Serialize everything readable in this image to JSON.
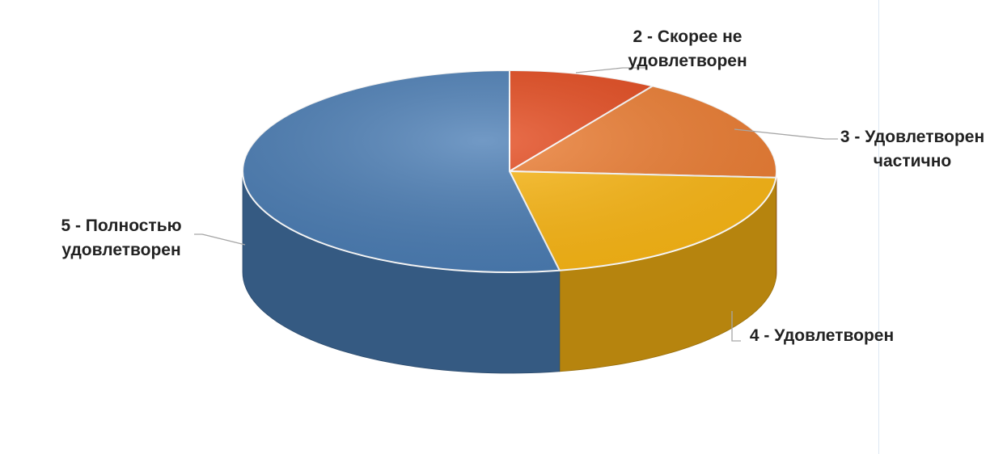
{
  "chart_data": {
    "type": "pie",
    "style": "3d",
    "legend": "none",
    "start_angle_deg": 0,
    "direction": "clockwise",
    "slices": [
      {
        "label_lines": [
          "2 - Скорее не",
          "удовлетворен"
        ],
        "value": 9,
        "color": "#e5481b"
      },
      {
        "label_lines": [
          "3 - Удовлетворен",
          "частично"
        ],
        "value": 17,
        "color": "#ee7d31"
      },
      {
        "label_lines": [
          "4 - Удовлетворен"
        ],
        "value": 21,
        "color": "#fdb813"
      },
      {
        "label_lines": [
          "5 - Полностью",
          "удовлетворен"
        ],
        "value": 53,
        "color": "#4a7db5"
      }
    ]
  }
}
